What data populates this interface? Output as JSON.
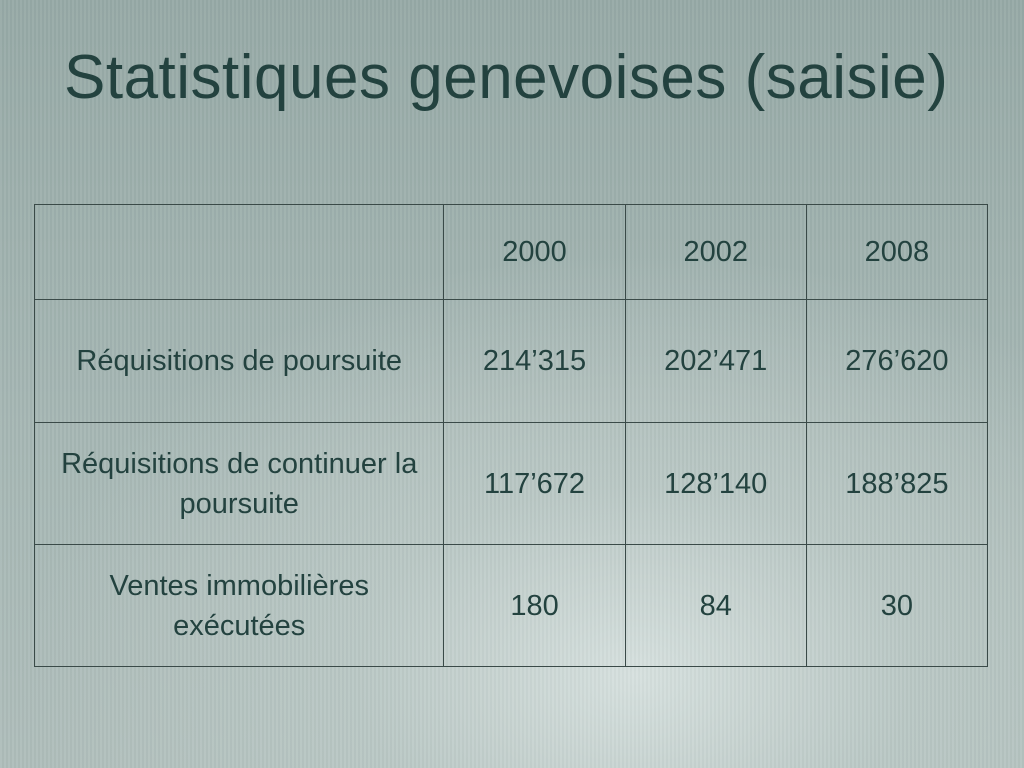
{
  "title": "Statistiques genevoises (saisie)",
  "table": {
    "headers": [
      "",
      "2000",
      "2002",
      "2008"
    ],
    "rows": [
      {
        "label": "Réquisitions de poursuite",
        "values": [
          "214’315",
          "202’471",
          "276’620"
        ]
      },
      {
        "label": "Réquisitions de continuer la poursuite",
        "values": [
          "117’672",
          "128’140",
          "188’825"
        ]
      },
      {
        "label": "Ventes immobilières exécutées",
        "values": [
          "180",
          "84",
          "30"
        ]
      }
    ]
  },
  "colors": {
    "title_text": "#23423f",
    "value_text": "#e3120b",
    "border": "#3a4a48"
  }
}
